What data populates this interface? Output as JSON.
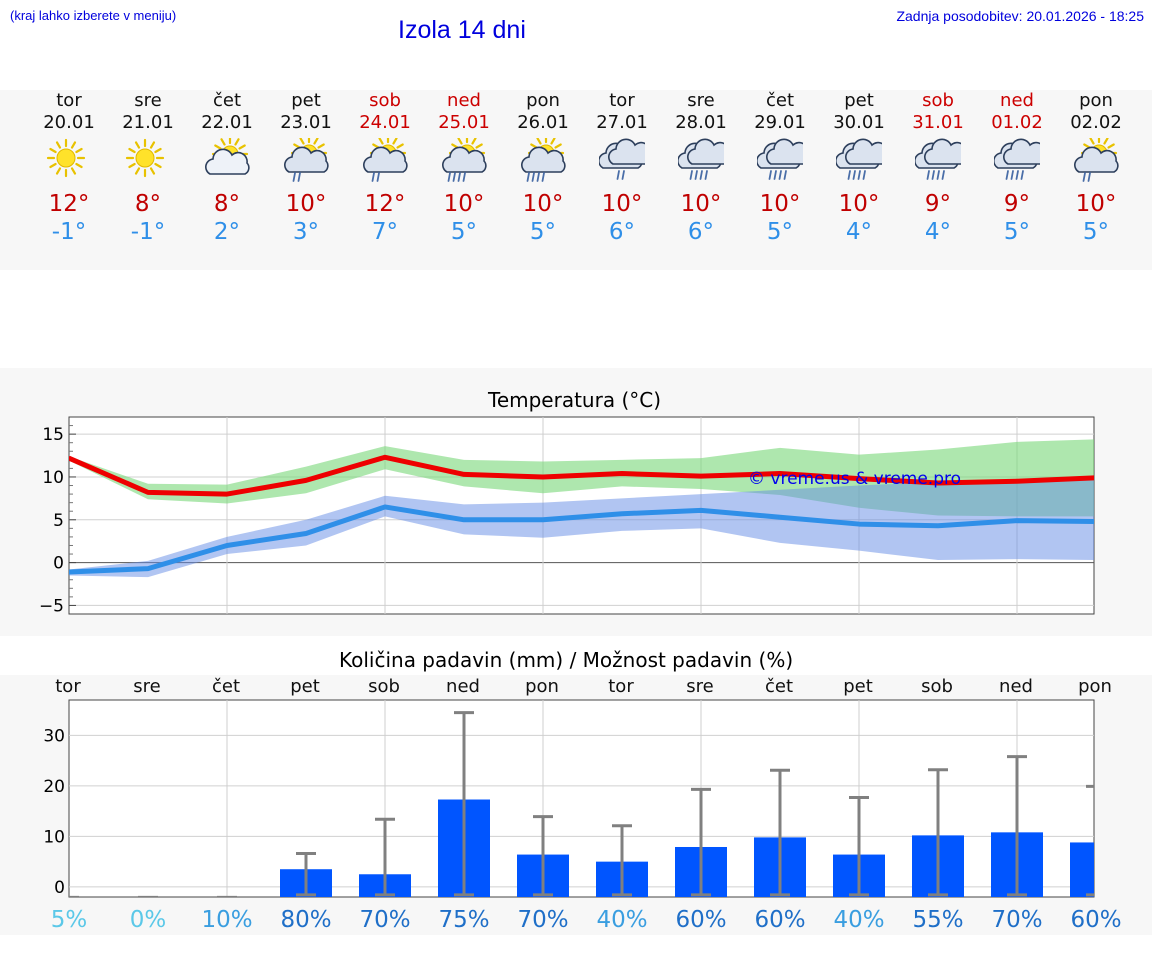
{
  "header": {
    "hint": "(kraj lahko izberete v meniju)",
    "title": "Izola 14 dni",
    "updated": "Zadnja posodobitev: 20.01.2026 - 18:25"
  },
  "colors": {
    "accent": "#0000dd",
    "max_temp": "#ee0000",
    "min_temp": "#2f8fe8",
    "bar": "#0055ff",
    "weekend": "#cc0000"
  },
  "days": [
    {
      "name": "tor",
      "date": "20.01",
      "icon": "sun-icon",
      "max": "12°",
      "min": "-1°",
      "weekend": false
    },
    {
      "name": "sre",
      "date": "21.01",
      "icon": "sun-icon",
      "max": "8°",
      "min": "-1°",
      "weekend": false
    },
    {
      "name": "čet",
      "date": "22.01",
      "icon": "partly-cloudy-icon",
      "max": "8°",
      "min": "2°",
      "weekend": false
    },
    {
      "name": "pet",
      "date": "23.01",
      "icon": "sun-cloud-light-rain-icon",
      "max": "10°",
      "min": "3°",
      "weekend": false
    },
    {
      "name": "sob",
      "date": "24.01",
      "icon": "sun-cloud-light-rain-icon",
      "max": "12°",
      "min": "7°",
      "weekend": true
    },
    {
      "name": "ned",
      "date": "25.01",
      "icon": "sun-cloud-rain-icon",
      "max": "10°",
      "min": "5°",
      "weekend": true
    },
    {
      "name": "pon",
      "date": "26.01",
      "icon": "sun-cloud-rain-icon",
      "max": "10°",
      "min": "5°",
      "weekend": false
    },
    {
      "name": "tor",
      "date": "27.01",
      "icon": "cloud-light-rain-icon",
      "max": "10°",
      "min": "6°",
      "weekend": false
    },
    {
      "name": "sre",
      "date": "28.01",
      "icon": "cloud-rain-icon",
      "max": "10°",
      "min": "6°",
      "weekend": false
    },
    {
      "name": "čet",
      "date": "29.01",
      "icon": "cloud-rain-icon",
      "max": "10°",
      "min": "5°",
      "weekend": false
    },
    {
      "name": "pet",
      "date": "30.01",
      "icon": "cloud-rain-icon",
      "max": "10°",
      "min": "4°",
      "weekend": false
    },
    {
      "name": "sob",
      "date": "31.01",
      "icon": "cloud-rain-icon",
      "max": "9°",
      "min": "4°",
      "weekend": true
    },
    {
      "name": "ned",
      "date": "01.02",
      "icon": "cloud-rain-icon",
      "max": "9°",
      "min": "5°",
      "weekend": true
    },
    {
      "name": "pon",
      "date": "02.02",
      "icon": "sun-cloud-light-rain-icon",
      "max": "10°",
      "min": "5°",
      "weekend": false
    }
  ],
  "chart_data": [
    {
      "type": "line",
      "title": "Temperatura (°C)",
      "watermark": "© vreme.us & vreme.pro",
      "ylim": [
        -6,
        17
      ],
      "yticks": [
        -5,
        0,
        5,
        10,
        15
      ],
      "grid": true,
      "series": [
        {
          "name": "max",
          "color": "#ee0000",
          "values": [
            12.2,
            8.2,
            8.0,
            9.6,
            12.3,
            10.3,
            10.0,
            10.4,
            10.1,
            10.4,
            9.8,
            9.3,
            9.5,
            9.9
          ],
          "band_low": [
            11.9,
            7.4,
            6.9,
            8.1,
            10.9,
            8.9,
            8.1,
            8.9,
            8.6,
            7.9,
            6.4,
            5.5,
            5.4,
            5.4
          ],
          "band_high": [
            12.4,
            9.2,
            9.1,
            11.2,
            13.6,
            12.0,
            11.8,
            12.0,
            12.2,
            13.4,
            12.6,
            13.2,
            14.1,
            14.4
          ]
        },
        {
          "name": "min",
          "color": "#2f8fe8",
          "values": [
            -1.1,
            -0.7,
            2.0,
            3.4,
            6.5,
            5.0,
            5.0,
            5.7,
            6.1,
            5.3,
            4.5,
            4.3,
            4.9,
            4.8
          ],
          "band_low": [
            -1.5,
            -1.7,
            1.0,
            2.0,
            5.4,
            3.3,
            2.9,
            3.7,
            4.0,
            2.3,
            1.4,
            0.3,
            0.4,
            0.3
          ],
          "band_high": [
            -0.8,
            0.2,
            3.0,
            5.0,
            7.8,
            6.8,
            7.0,
            7.5,
            8.0,
            8.5,
            9.0,
            9.4,
            9.6,
            9.7
          ]
        }
      ]
    },
    {
      "type": "bar",
      "title": "Količina padavin (mm) / Možnost padavin (%)",
      "categories": [
        "tor",
        "sre",
        "čet",
        "pet",
        "sob",
        "ned",
        "pon",
        "tor",
        "sre",
        "čet",
        "pet",
        "sob",
        "ned",
        "pon"
      ],
      "ylim": [
        -2,
        37
      ],
      "yticks": [
        0,
        10,
        20,
        30
      ],
      "values": [
        0,
        0,
        0,
        3.5,
        2.5,
        17.3,
        6.4,
        5.0,
        7.9,
        9.8,
        6.4,
        10.2,
        10.8,
        8.8
      ],
      "error_high": [
        0,
        0,
        0,
        6.6,
        13.4,
        34.5,
        13.9,
        12.1,
        19.3,
        23.1,
        17.7,
        23.2,
        25.8,
        19.9
      ],
      "error_low": [
        0,
        0,
        0,
        0,
        0,
        0,
        0,
        0,
        0,
        0,
        0,
        0,
        0,
        0
      ],
      "probability": [
        "5%",
        "0%",
        "10%",
        "80%",
        "70%",
        "75%",
        "70%",
        "40%",
        "60%",
        "60%",
        "40%",
        "55%",
        "70%",
        "60%"
      ],
      "probability_colors": [
        "#5bc8e8",
        "#5bc8e8",
        "#3a9ee0",
        "#1f6fc8",
        "#1f6fc8",
        "#1f6fc8",
        "#1f6fc8",
        "#3a9ee0",
        "#1f6fc8",
        "#1f6fc8",
        "#3a9ee0",
        "#1f6fc8",
        "#1f6fc8",
        "#1f6fc8"
      ]
    }
  ]
}
